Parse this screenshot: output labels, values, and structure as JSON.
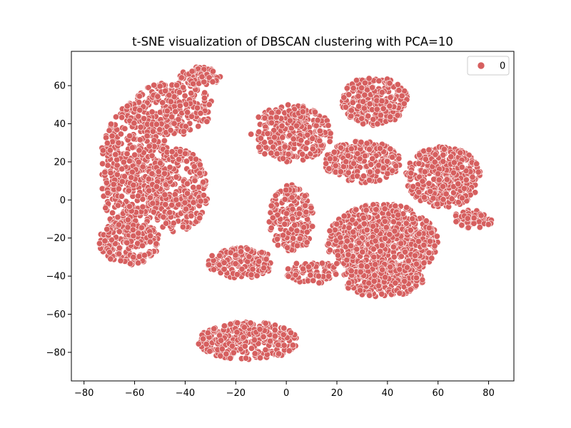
{
  "chart_data": {
    "type": "scatter",
    "title": "t-SNE visualization of DBSCAN clustering with PCA=10",
    "xlabel": "",
    "ylabel": "",
    "xlim": [
      -85,
      90
    ],
    "ylim": [
      -95,
      78
    ],
    "xticks": [
      -80,
      -60,
      -40,
      -20,
      0,
      20,
      40,
      60,
      80
    ],
    "yticks": [
      -80,
      -60,
      -40,
      -20,
      0,
      20,
      40,
      60
    ],
    "grid": false,
    "legend": {
      "placement": "top-right",
      "entries": [
        {
          "label": "0",
          "color": "#d65f5f"
        }
      ]
    },
    "series": [
      {
        "name": "0",
        "color": "#d65f5f",
        "regions": [
          {
            "desc": "left cluster upper arm",
            "cx": -45,
            "cy": 48,
            "rx": 16,
            "ry": 14,
            "n": 260
          },
          {
            "desc": "left cluster top cap",
            "cx": -34,
            "cy": 65,
            "rx": 8,
            "ry": 5,
            "n": 90
          },
          {
            "desc": "left cluster main body",
            "cx": -60,
            "cy": 15,
            "rx": 14,
            "ry": 36,
            "n": 520
          },
          {
            "desc": "left cluster lower lobe",
            "cx": -62,
            "cy": -22,
            "rx": 12,
            "ry": 12,
            "n": 200
          },
          {
            "desc": "left cluster right part",
            "cx": -43,
            "cy": 5,
            "rx": 12,
            "ry": 22,
            "n": 280
          },
          {
            "desc": "bottom cluster",
            "cx": -15,
            "cy": -74,
            "rx": 20,
            "ry": 10,
            "n": 300
          },
          {
            "desc": "middle lower arm",
            "cx": -18,
            "cy": -33,
            "rx": 13,
            "ry": 8,
            "n": 180
          },
          {
            "desc": "middle upper arm",
            "cx": 2,
            "cy": 35,
            "rx": 16,
            "ry": 15,
            "n": 320
          },
          {
            "desc": "middle stem",
            "cx": 2,
            "cy": -10,
            "rx": 9,
            "ry": 18,
            "n": 200
          },
          {
            "desc": "middle connector",
            "cx": 10,
            "cy": -38,
            "rx": 10,
            "ry": 6,
            "n": 80
          },
          {
            "desc": "right cluster top",
            "cx": 35,
            "cy": 52,
            "rx": 13,
            "ry": 13,
            "n": 260
          },
          {
            "desc": "right cluster upper middle",
            "cx": 30,
            "cy": 20,
            "rx": 15,
            "ry": 11,
            "n": 240
          },
          {
            "desc": "right cluster right arm",
            "cx": 62,
            "cy": 12,
            "rx": 15,
            "ry": 16,
            "n": 350
          },
          {
            "desc": "right cluster main body",
            "cx": 38,
            "cy": -22,
            "rx": 22,
            "ry": 20,
            "n": 780
          },
          {
            "desc": "right cluster lower",
            "cx": 38,
            "cy": -42,
            "rx": 16,
            "ry": 9,
            "n": 230
          },
          {
            "desc": "right cluster far-right tail",
            "cx": 74,
            "cy": -10,
            "rx": 8,
            "ry": 5,
            "n": 60
          }
        ]
      }
    ]
  }
}
